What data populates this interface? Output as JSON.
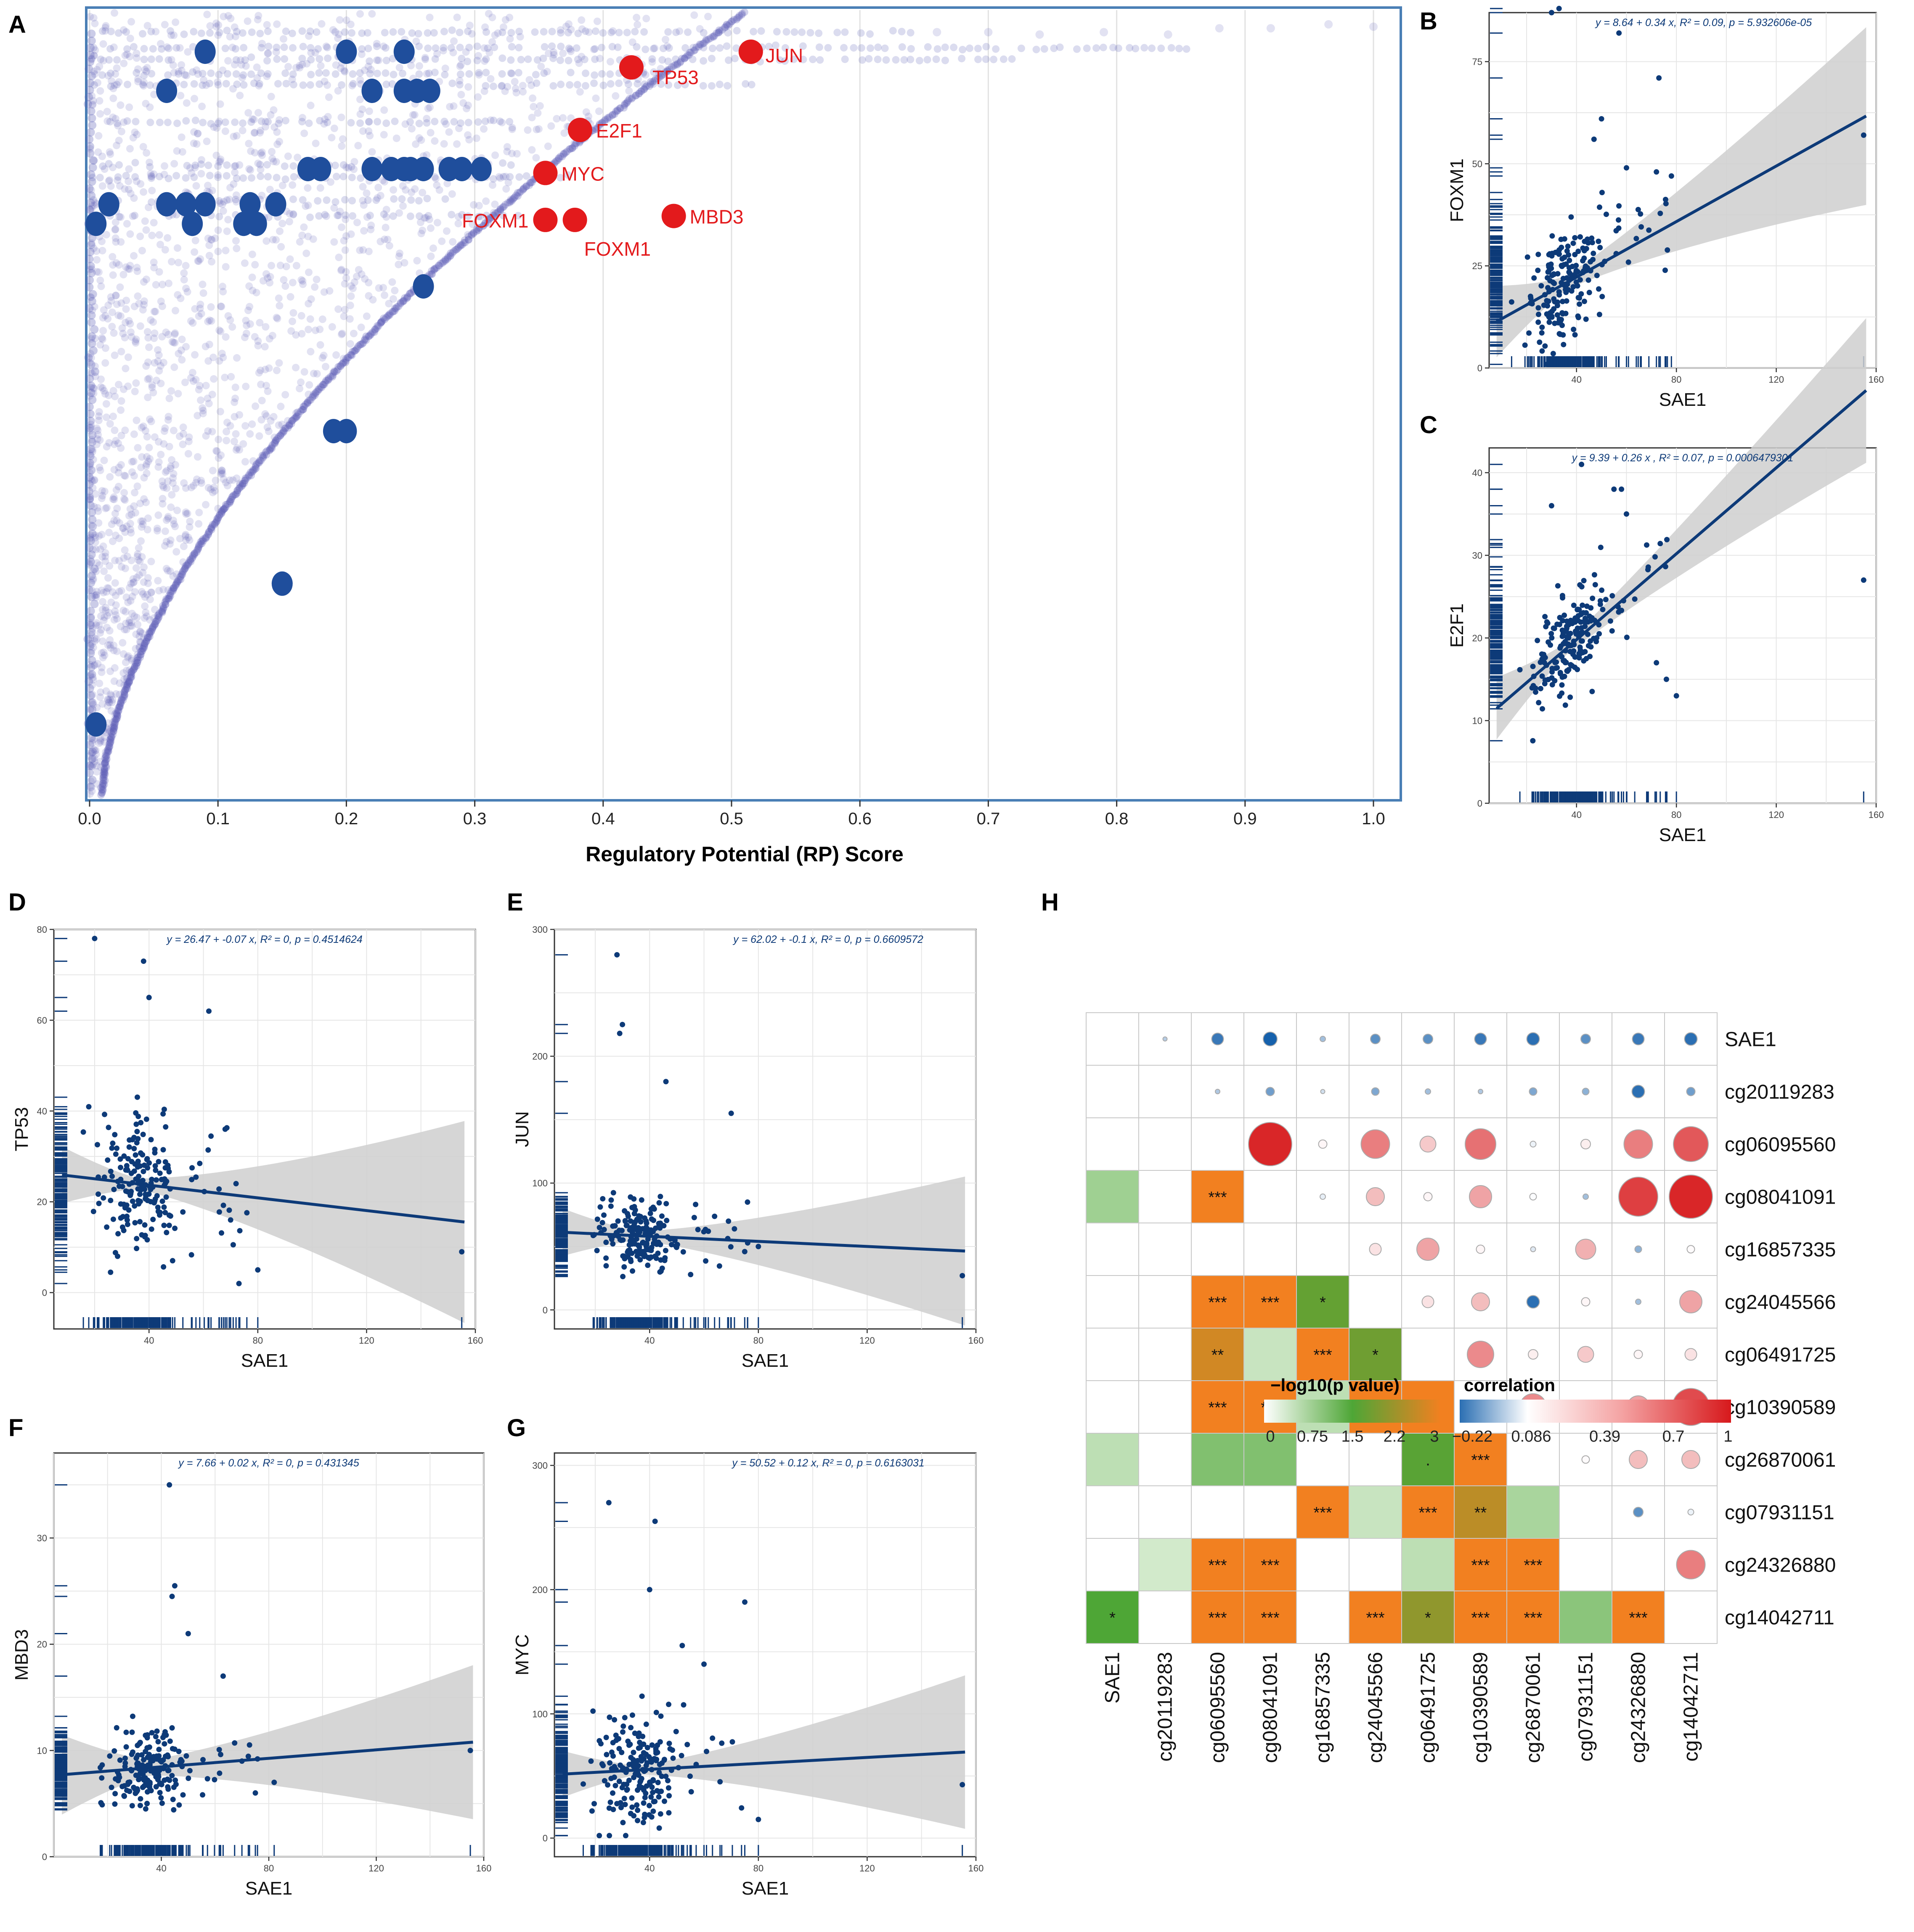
{
  "figure": {
    "colors": {
      "blue": "#1f4e9c",
      "darkblue": "#0d3a78",
      "red": "#e31a1c",
      "band": "#cfcfcf",
      "grid": "#e2e2e2",
      "orange": "#f28020",
      "green": "#4ea636",
      "panel_a_frame": "#4a7fb5"
    }
  },
  "panels": {
    "A": {
      "letter": "A",
      "chart_data": {
        "type": "scatter",
        "xlabel": "Regulatory Potential (RP) Score",
        "ylabel": "",
        "xlim": [
          0,
          1.0
        ],
        "ylim": [
          0,
          100
        ],
        "x_ticks": [
          "0.0",
          "0.1",
          "0.2",
          "0.3",
          "0.4",
          "0.5",
          "0.6",
          "0.7",
          "0.8",
          "0.9",
          "1.0"
        ],
        "blue_points": [
          [
            0.09,
            95
          ],
          [
            0.2,
            95
          ],
          [
            0.245,
            95
          ],
          [
            0.06,
            90
          ],
          [
            0.22,
            90
          ],
          [
            0.245,
            90
          ],
          [
            0.265,
            90
          ],
          [
            0.255,
            90
          ],
          [
            0.17,
            80
          ],
          [
            0.18,
            80
          ],
          [
            0.22,
            80
          ],
          [
            0.235,
            80
          ],
          [
            0.245,
            80
          ],
          [
            0.25,
            80
          ],
          [
            0.26,
            80
          ],
          [
            0.28,
            80
          ],
          [
            0.29,
            80
          ],
          [
            0.305,
            80
          ],
          [
            0.015,
            75.5
          ],
          [
            0.06,
            75.5
          ],
          [
            0.075,
            75.5
          ],
          [
            0.09,
            75.5
          ],
          [
            0.125,
            75.5
          ],
          [
            0.145,
            75.5
          ],
          [
            0.08,
            73
          ],
          [
            0.12,
            73
          ],
          [
            0.13,
            73
          ],
          [
            0.005,
            73
          ],
          [
            0.26,
            65
          ],
          [
            0.19,
            46.5
          ],
          [
            0.2,
            46.5
          ],
          [
            0.15,
            27
          ],
          [
            0.005,
            9
          ]
        ],
        "red_points": [
          {
            "label": "JUN",
            "x": 0.515,
            "y": 95
          },
          {
            "label": "TP53",
            "x": 0.422,
            "y": 93
          },
          {
            "label": "E2F1",
            "x": 0.382,
            "y": 85
          },
          {
            "label": "MYC",
            "x": 0.355,
            "y": 79.5
          },
          {
            "label": "FOXM1",
            "x": 0.355,
            "y": 73.5
          },
          {
            "label": "FOXM1",
            "x": 0.378,
            "y": 73.5
          },
          {
            "label": "MBD3",
            "x": 0.455,
            "y": 74
          }
        ]
      }
    },
    "B": {
      "letter": "B",
      "chart_data": {
        "type": "scatter",
        "title": "y = 8.64 + 0.34  x,  R² = 0.09,  p = 5.932606e-05",
        "xlabel": "SAE1",
        "ylabel": "FOXM1",
        "xlim": [
          5,
          160
        ],
        "ylim": [
          0,
          87
        ],
        "x_ticks": [
          40,
          80,
          120,
          160
        ],
        "y_ticks": [
          0,
          25,
          50,
          75
        ],
        "fit": {
          "intercept": 8.64,
          "slope": 0.34,
          "band_left": 7,
          "band_right": 20
        },
        "outliers": [
          [
            30,
            87
          ],
          [
            57,
            82
          ],
          [
            73,
            71
          ],
          [
            155,
            57
          ],
          [
            33,
            88
          ],
          [
            50,
            61
          ],
          [
            47,
            56
          ],
          [
            60,
            49
          ],
          [
            72,
            48
          ],
          [
            78,
            47
          ]
        ]
      }
    },
    "C": {
      "letter": "C",
      "chart_data": {
        "type": "scatter",
        "title": "y = 9.39 + 0.26 x ,  R² = 0.07,  p = 0.0006479301",
        "xlabel": "SAE1",
        "ylabel": "E2F1",
        "xlim": [
          5,
          160
        ],
        "ylim": [
          0,
          43
        ],
        "x_ticks": [
          40,
          80,
          120,
          160
        ],
        "y_ticks": [
          0,
          10,
          20,
          30,
          40
        ],
        "fit": {
          "intercept": 9.39,
          "slope": 0.26,
          "band_left": 3,
          "band_right": 8
        },
        "outliers": [
          [
            42,
            41
          ],
          [
            55,
            38
          ],
          [
            58,
            38
          ],
          [
            60,
            35
          ],
          [
            30,
            36
          ],
          [
            155,
            27
          ],
          [
            72,
            17
          ],
          [
            76,
            15
          ],
          [
            80,
            13
          ]
        ]
      }
    },
    "D": {
      "letter": "D",
      "chart_data": {
        "type": "scatter",
        "title": "y = 26.47 + -0.07  x,  R² = 0,  p = 0.4514624",
        "xlabel": "SAE1",
        "ylabel": "TP53",
        "xlim": [
          5,
          160
        ],
        "ylim": [
          -8,
          80
        ],
        "x_ticks": [
          40,
          80,
          120,
          160
        ],
        "y_ticks": [
          0,
          20,
          40,
          60,
          80
        ],
        "fit": {
          "intercept": 26.47,
          "slope": -0.07,
          "band_left": 5,
          "band_right": 21
        },
        "outliers": [
          [
            20,
            78
          ],
          [
            38,
            73
          ],
          [
            40,
            65
          ],
          [
            62,
            62
          ],
          [
            155,
            9
          ],
          [
            68,
            36
          ],
          [
            80,
            5
          ],
          [
            70,
            16
          ],
          [
            72,
            24
          ]
        ]
      }
    },
    "E": {
      "letter": "E",
      "chart_data": {
        "type": "scatter",
        "title": "y = 62.02 + -0.1  x,  R² = 0,  p = 0.6609572",
        "xlabel": "SAE1",
        "ylabel": "JUN",
        "xlim": [
          5,
          160
        ],
        "ylim": [
          -15,
          300
        ],
        "x_ticks": [
          40,
          80,
          120,
          160
        ],
        "y_ticks": [
          0,
          100,
          200,
          300
        ],
        "fit": {
          "intercept": 62.02,
          "slope": -0.1,
          "band_left": 15,
          "band_right": 55
        },
        "outliers": [
          [
            28,
            280
          ],
          [
            30,
            225
          ],
          [
            29,
            218
          ],
          [
            46,
            180
          ],
          [
            70,
            155
          ],
          [
            155,
            27
          ],
          [
            80,
            50
          ],
          [
            76,
            85
          ]
        ]
      }
    },
    "F": {
      "letter": "F",
      "chart_data": {
        "type": "scatter",
        "title": "y = 7.66 + 0.02  x,  R² = 0,  p = 0.431345",
        "xlabel": "SAE1",
        "ylabel": "MBD3",
        "xlim": [
          0,
          160
        ],
        "ylim": [
          0,
          38
        ],
        "x_ticks": [
          40,
          80,
          120,
          160
        ],
        "y_ticks": [
          0,
          10,
          20,
          30
        ],
        "fit": {
          "intercept": 7.66,
          "slope": 0.02,
          "band_left": 3,
          "band_right": 6.5
        },
        "outliers": [
          [
            43,
            35
          ],
          [
            45,
            25.5
          ],
          [
            44,
            24.5
          ],
          [
            50,
            21
          ],
          [
            63,
            17
          ],
          [
            155,
            10
          ],
          [
            75,
            6
          ],
          [
            70,
            9
          ],
          [
            82,
            7
          ]
        ]
      }
    },
    "G": {
      "letter": "G",
      "chart_data": {
        "type": "scatter",
        "title": "y = 50.52 + 0.12  x,  R² = 0,  p = 0.6163031",
        "xlabel": "SAE1",
        "ylabel": "MYC",
        "xlim": [
          5,
          160
        ],
        "ylim": [
          -15,
          310
        ],
        "x_ticks": [
          40,
          80,
          120,
          160
        ],
        "y_ticks": [
          0,
          100,
          200,
          300
        ],
        "fit": {
          "intercept": 50.52,
          "slope": 0.12,
          "band_left": 15,
          "band_right": 58
        },
        "outliers": [
          [
            25,
            270
          ],
          [
            42,
            255
          ],
          [
            40,
            200
          ],
          [
            75,
            190
          ],
          [
            155,
            43
          ],
          [
            80,
            15
          ],
          [
            52,
            155
          ],
          [
            60,
            140
          ]
        ]
      }
    },
    "H": {
      "letter": "H",
      "chart_data": {
        "type": "heatmap",
        "labels": [
          "SAE1",
          "cg20119283",
          "cg06095560",
          "cg08041091",
          "cg16857335",
          "cg24045566",
          "cg06491725",
          "cg10390589",
          "cg26870061",
          "cg07931151",
          "cg24326880",
          "cg14042711"
        ],
        "lower_log10p": [
          [
            null,
            null,
            null,
            null,
            null,
            null,
            null,
            null,
            null,
            null,
            null,
            null
          ],
          [
            null,
            null,
            null,
            null,
            null,
            null,
            null,
            null,
            null,
            null,
            null,
            null
          ],
          [
            null,
            null,
            null,
            null,
            null,
            null,
            null,
            null,
            null,
            null,
            null,
            null
          ],
          [
            0.7,
            null,
            3.0,
            null,
            null,
            null,
            null,
            null,
            null,
            null,
            null,
            null
          ],
          [
            null,
            null,
            null,
            null,
            null,
            null,
            null,
            null,
            null,
            null,
            null,
            null
          ],
          [
            null,
            null,
            3.0,
            3.0,
            1.7,
            null,
            null,
            null,
            null,
            null,
            null,
            null
          ],
          [
            null,
            null,
            2.7,
            0.3,
            3.0,
            1.8,
            null,
            null,
            null,
            null,
            null,
            null
          ],
          [
            null,
            null,
            3.0,
            3.0,
            0.4,
            3.0,
            3.0,
            null,
            null,
            null,
            null,
            null
          ],
          [
            0.4,
            null,
            1.0,
            1.0,
            null,
            null,
            1.6,
            3.0,
            null,
            null,
            null,
            null
          ],
          [
            null,
            null,
            null,
            null,
            3.0,
            0.3,
            3.0,
            2.5,
            0.6,
            null,
            null,
            null
          ],
          [
            null,
            0.2,
            3.0,
            3.0,
            null,
            null,
            0.4,
            3.0,
            3.0,
            null,
            null,
            null
          ],
          [
            1.5,
            null,
            3.0,
            3.0,
            null,
            3.0,
            2.1,
            3.0,
            3.0,
            0.9,
            3.0,
            null
          ]
        ],
        "stars": [
          [
            "",
            "",
            "",
            "",
            "",
            "",
            "",
            "",
            "",
            "",
            "",
            ""
          ],
          [
            "",
            "",
            "",
            "",
            "",
            "",
            "",
            "",
            "",
            "",
            "",
            ""
          ],
          [
            "",
            "",
            "",
            "",
            "",
            "",
            "",
            "",
            "",
            "",
            "",
            ""
          ],
          [
            "",
            "",
            "***",
            "",
            "",
            "",
            "",
            "",
            "",
            "",
            "",
            ""
          ],
          [
            "",
            "",
            "",
            "",
            "",
            "",
            "",
            "",
            "",
            "",
            "",
            ""
          ],
          [
            "",
            "",
            "***",
            "***",
            "*",
            "",
            "",
            "",
            "",
            "",
            "",
            ""
          ],
          [
            "",
            "",
            "**",
            "",
            "***",
            "*",
            "",
            "",
            "",
            "",
            "",
            ""
          ],
          [
            "",
            "",
            "***",
            "***",
            "",
            "***",
            "***",
            "",
            "",
            "",
            "",
            ""
          ],
          [
            "",
            "",
            "",
            "",
            "",
            "",
            ".",
            "***",
            "",
            "",
            "",
            ""
          ],
          [
            "",
            "",
            "",
            "",
            "***",
            "",
            "***",
            "**",
            "",
            "",
            "",
            ""
          ],
          [
            "",
            "",
            "***",
            "***",
            "",
            "",
            "",
            "***",
            "***",
            "",
            "",
            ""
          ],
          [
            "*",
            "",
            "***",
            "***",
            "",
            "***",
            "*",
            "***",
            "***",
            "",
            "***",
            ""
          ]
        ],
        "upper_corr": [
          [
            null,
            -0.02,
            -0.2,
            -0.25,
            -0.05,
            -0.15,
            -0.15,
            -0.2,
            -0.22,
            -0.15,
            -0.2,
            -0.22
          ],
          [
            null,
            null,
            -0.03,
            -0.12,
            0.02,
            -0.1,
            -0.05,
            -0.03,
            -0.1,
            -0.08,
            -0.22,
            -0.12
          ],
          [
            null,
            null,
            null,
            0.95,
            0.12,
            0.6,
            0.3,
            0.65,
            0.06,
            0.15,
            0.6,
            0.75
          ],
          [
            null,
            null,
            null,
            null,
            0.05,
            0.35,
            0.12,
            0.45,
            0.08,
            -0.05,
            0.85,
            0.95
          ],
          [
            null,
            null,
            null,
            null,
            null,
            0.2,
            0.45,
            0.12,
            0.04,
            0.4,
            -0.08,
            0.1
          ],
          [
            null,
            null,
            null,
            null,
            null,
            null,
            0.2,
            0.35,
            -0.22,
            0.12,
            -0.05,
            0.45
          ],
          [
            null,
            null,
            null,
            null,
            null,
            null,
            null,
            0.55,
            0.15,
            0.3,
            0.12,
            0.2
          ],
          [
            null,
            null,
            null,
            null,
            null,
            null,
            null,
            null,
            0.55,
            0.25,
            0.45,
            0.8
          ],
          [
            null,
            null,
            null,
            null,
            null,
            null,
            null,
            null,
            null,
            0.1,
            0.35,
            0.35
          ],
          [
            null,
            null,
            null,
            null,
            null,
            null,
            null,
            null,
            null,
            null,
            -0.15,
            0.06
          ],
          [
            null,
            null,
            null,
            null,
            null,
            null,
            null,
            null,
            null,
            null,
            null,
            0.6
          ],
          [
            null,
            null,
            null,
            null,
            null,
            null,
            null,
            null,
            null,
            null,
            null,
            null
          ]
        ],
        "legend_p": {
          "title": "−log10(p value)",
          "ticks": [
            "0",
            "0.75",
            "1.5",
            "2.2",
            "3"
          ]
        },
        "legend_corr": {
          "title": "correlation",
          "ticks": [
            "−0.22",
            "0.086",
            "0.39",
            "0.7",
            "1"
          ]
        }
      }
    }
  }
}
